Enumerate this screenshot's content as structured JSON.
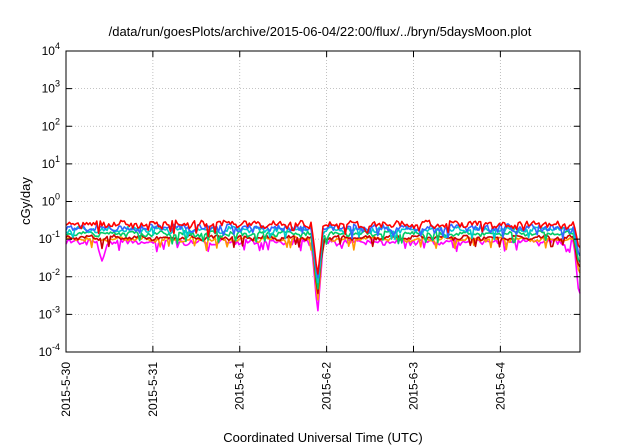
{
  "chart_data": {
    "type": "line",
    "title": "/data/run/goesPlots/archive/2015-06-04/22:00/flux/../bryn/5daysMoon.plot",
    "xlabel": "Coordinated Universal Time (UTC)",
    "ylabel": "cGy/day",
    "yscale": "log",
    "ylim": [
      0.0001,
      10000
    ],
    "xlim": [
      "2015-05-30T00:00",
      "2015-06-04T22:00"
    ],
    "grid": true,
    "x_ticks": [
      "2015-5-30",
      "2015-5-31",
      "2015-6-1",
      "2015-6-2",
      "2015-6-3",
      "2015-6-4"
    ],
    "y_ticks": [
      {
        "value": 0.0001,
        "base": "10",
        "exp": "-4"
      },
      {
        "value": 0.001,
        "base": "10",
        "exp": "-3"
      },
      {
        "value": 0.01,
        "base": "10",
        "exp": "-2"
      },
      {
        "value": 0.1,
        "base": "10",
        "exp": "-1"
      },
      {
        "value": 1,
        "base": "10",
        "exp": "0"
      },
      {
        "value": 10,
        "base": "10",
        "exp": "1"
      },
      {
        "value": 100,
        "base": "10",
        "exp": "2"
      },
      {
        "value": 1000,
        "base": "10",
        "exp": "3"
      },
      {
        "value": 10000,
        "base": "10",
        "exp": "4"
      }
    ],
    "series": [
      {
        "color": "#ff00ff",
        "base": 0.085,
        "noise": 0.15,
        "dips": [
          {
            "time": "2015-06-01T21:30",
            "value": 0.001
          },
          {
            "time": "2015-06-04T21:50",
            "value": 0.0025
          },
          {
            "time": "2015-05-30T10:00",
            "value": 0.025
          }
        ]
      },
      {
        "color": "#ff9900",
        "base": 0.1,
        "noise": 0.1,
        "dips": [
          {
            "time": "2015-06-01T21:30",
            "value": 0.002
          },
          {
            "time": "2015-06-04T21:50",
            "value": 0.01
          }
        ]
      },
      {
        "color": "#cc0000",
        "base": 0.11,
        "noise": 0.1,
        "dips": [
          {
            "time": "2015-06-01T21:30",
            "value": 0.003
          },
          {
            "time": "2015-06-04T21:50",
            "value": 0.015
          }
        ]
      },
      {
        "color": "#00cc66",
        "base": 0.14,
        "noise": 0.12,
        "dips": [
          {
            "time": "2015-06-01T21:30",
            "value": 0.004
          },
          {
            "time": "2015-06-04T21:50",
            "value": 0.02
          }
        ]
      },
      {
        "color": "#00cccc",
        "base": 0.18,
        "noise": 0.15,
        "dips": [
          {
            "time": "2015-06-01T21:30",
            "value": 0.006
          },
          {
            "time": "2015-06-04T21:50",
            "value": 0.03
          }
        ]
      },
      {
        "color": "#3366ff",
        "base": 0.2,
        "noise": 0.2,
        "dips": [
          {
            "time": "2015-06-01T21:30",
            "value": 0.008
          },
          {
            "time": "2015-06-04T21:50",
            "value": 0.03
          }
        ]
      },
      {
        "color": "#ff0000",
        "base": 0.25,
        "noise": 0.2,
        "dips": [
          {
            "time": "2015-06-01T21:30",
            "value": 0.01
          },
          {
            "time": "2015-06-04T21:50",
            "value": 0.05
          }
        ]
      }
    ]
  }
}
